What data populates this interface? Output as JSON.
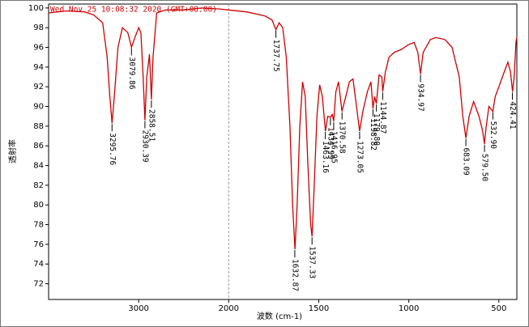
{
  "chart_data": {
    "type": "line",
    "header": "Wed Nov 25 10:08:32 2020 (GMT+08:00)",
    "xlabel": "波数 (cm-1)",
    "ylabel": "透射率",
    "xlim": [
      4000,
      400
    ],
    "x_break": 2000,
    "ylim": [
      70.4,
      100.4
    ],
    "xticks": [
      3000,
      2000,
      1500,
      1000,
      500
    ],
    "yticks": [
      72,
      74,
      76,
      78,
      80,
      82,
      84,
      86,
      88,
      90,
      92,
      94,
      96,
      98,
      100
    ],
    "series": [
      {
        "color": "#cc0000",
        "x": [
          4000,
          3800,
          3600,
          3500,
          3400,
          3350,
          3320,
          3296,
          3270,
          3230,
          3180,
          3120,
          3080,
          3050,
          3000,
          2975,
          2950,
          2930,
          2910,
          2880,
          2858,
          2840,
          2800,
          2700,
          2500,
          2300,
          2100,
          2000,
          1900,
          1800,
          1760,
          1738,
          1720,
          1700,
          1680,
          1660,
          1645,
          1632,
          1620,
          1605,
          1590,
          1575,
          1560,
          1545,
          1537,
          1525,
          1510,
          1495,
          1480,
          1463,
          1450,
          1435,
          1425,
          1417,
          1405,
          1390,
          1371,
          1350,
          1330,
          1310,
          1290,
          1273,
          1255,
          1230,
          1210,
          1199,
          1190,
          1180,
          1165,
          1150,
          1145,
          1130,
          1110,
          1080,
          1040,
          1000,
          970,
          950,
          935,
          920,
          880,
          850,
          800,
          760,
          720,
          700,
          683,
          665,
          640,
          610,
          590,
          580,
          570,
          555,
          533,
          520,
          500,
          470,
          450,
          435,
          424,
          415,
          405,
          400
        ],
        "values": [
          99.5,
          99.7,
          99.6,
          99.3,
          98.5,
          95,
          91,
          88.3,
          91,
          96,
          98,
          97.5,
          96,
          96.8,
          98,
          97.5,
          93,
          88.6,
          93,
          95.3,
          90.7,
          95,
          99.5,
          99.8,
          99.8,
          100,
          99.9,
          99.8,
          99.6,
          99.2,
          98.8,
          97.8,
          98.5,
          98,
          95,
          88,
          80,
          75.5,
          80,
          88,
          92.5,
          91,
          84,
          78,
          76.8,
          82,
          89,
          92.2,
          91,
          87.5,
          89,
          88.9,
          89.2,
          88.5,
          91.5,
          92.5,
          89.5,
          91,
          92.5,
          92.8,
          90,
          87.5,
          89.5,
          91.5,
          92.5,
          89.8,
          91,
          90.3,
          93.2,
          93,
          91.5,
          93.5,
          95,
          95.5,
          95.8,
          96.3,
          96.5,
          95.5,
          93.3,
          95.5,
          96.8,
          97,
          96.8,
          96,
          93,
          89,
          86.8,
          89,
          90.5,
          89,
          87.5,
          86.2,
          88,
          90,
          89.5,
          91,
          92,
          93.5,
          94.5,
          93.5,
          91.5,
          93,
          96.5,
          97
        ]
      }
    ],
    "peaks": [
      {
        "label": "3295.76",
        "x": 3295.76,
        "y": 88.3
      },
      {
        "label": "3079.86",
        "x": 3079.86,
        "y": 96
      },
      {
        "label": "2930.39",
        "x": 2930.39,
        "y": 88.6
      },
      {
        "label": "2858.51",
        "x": 2858.51,
        "y": 90.7
      },
      {
        "label": "1737.75",
        "x": 1737.75,
        "y": 97.8
      },
      {
        "label": "1632.87",
        "x": 1632.87,
        "y": 75.5
      },
      {
        "label": "1537.33",
        "x": 1537.33,
        "y": 76.8
      },
      {
        "label": "1463.16",
        "x": 1463.16,
        "y": 87.5
      },
      {
        "label": "1434.99",
        "x": 1434.99,
        "y": 88.9
      },
      {
        "label": "1416.95",
        "x": 1416.95,
        "y": 88.5
      },
      {
        "label": "1370.58",
        "x": 1370.58,
        "y": 89.5
      },
      {
        "label": "1273.05",
        "x": 1273.05,
        "y": 87.5
      },
      {
        "label": "1198.82",
        "x": 1198.82,
        "y": 89.8
      },
      {
        "label": "1179.80",
        "x": 1179.8,
        "y": 90.3
      },
      {
        "label": "1144.87",
        "x": 1144.87,
        "y": 91.5
      },
      {
        "label": "934.97",
        "x": 934.97,
        "y": 93.3
      },
      {
        "label": "683.09",
        "x": 683.09,
        "y": 86.8
      },
      {
        "label": "579.50",
        "x": 579.5,
        "y": 86.2
      },
      {
        "label": "532.90",
        "x": 532.9,
        "y": 89.5
      },
      {
        "label": "424.41",
        "x": 424.41,
        "y": 91.5
      }
    ]
  }
}
